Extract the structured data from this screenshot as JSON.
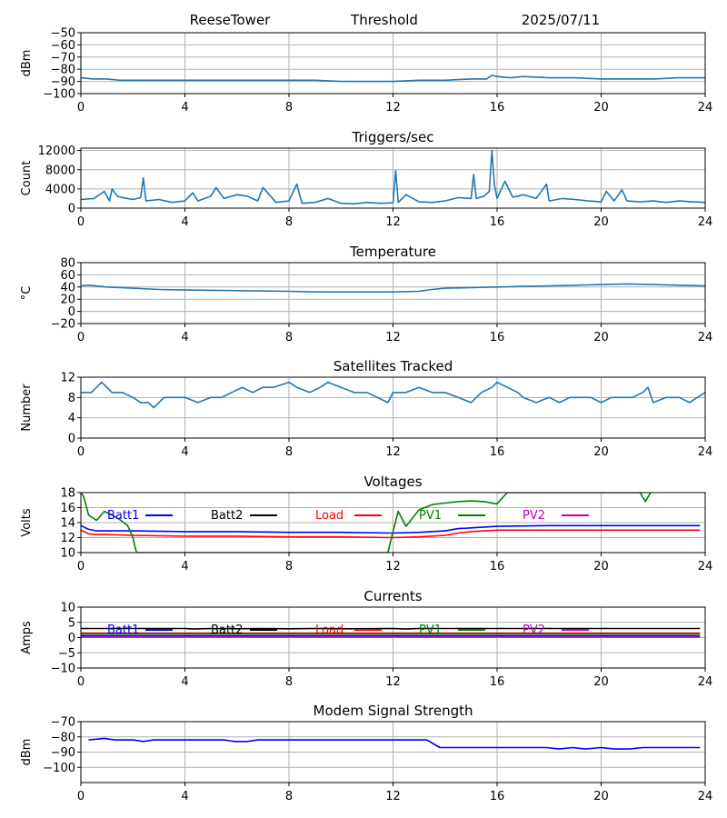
{
  "header": {
    "site": "ReeseTower",
    "mode": "Threshold",
    "date": "2025/07/11"
  },
  "chart_data": [
    {
      "type": "line",
      "title": "",
      "ylabel": "dBm",
      "xlabel": "",
      "xlim": [
        0,
        24
      ],
      "ylim": [
        -100,
        -50
      ],
      "xticks": [
        "0",
        "4",
        "8",
        "12",
        "16",
        "20",
        "24"
      ],
      "yticks": [
        "−100",
        "−90",
        "−80",
        "−70",
        "−60",
        "−50"
      ],
      "grid": true,
      "series": [
        {
          "color": "#1f77b4",
          "x": [
            0,
            0.5,
            1,
            1.5,
            2,
            3,
            4,
            6,
            8,
            9,
            10,
            11,
            12,
            13,
            14,
            15,
            15.6,
            15.8,
            16,
            16.5,
            17,
            18,
            19,
            20,
            21,
            22,
            23,
            24
          ],
          "y": [
            -87,
            -88,
            -88,
            -89,
            -89,
            -89,
            -89,
            -89,
            -89,
            -89,
            -90,
            -90,
            -90,
            -89,
            -89,
            -88,
            -88,
            -85,
            -86,
            -87,
            -86,
            -87,
            -87,
            -88,
            -88,
            -88,
            -87,
            -87
          ]
        }
      ]
    },
    {
      "type": "line",
      "title": "Triggers/sec",
      "ylabel": "Count",
      "xlabel": "",
      "xlim": [
        0,
        24
      ],
      "ylim": [
        0,
        12500
      ],
      "xticks": [
        "0",
        "4",
        "8",
        "12",
        "16",
        "20",
        "24"
      ],
      "yticks": [
        "0",
        "4000",
        "8000",
        "12000"
      ],
      "grid": true,
      "series": [
        {
          "color": "#1f77b4",
          "x": [
            0,
            0.5,
            0.9,
            1.1,
            1.2,
            1.4,
            1.6,
            1.8,
            2,
            2.3,
            2.4,
            2.5,
            3,
            3.5,
            4,
            4.3,
            4.5,
            5,
            5.2,
            5.5,
            6,
            6.4,
            6.8,
            7,
            7.5,
            8,
            8.3,
            8.5,
            9,
            9.5,
            10,
            10.5,
            11,
            11.5,
            12,
            12.1,
            12.2,
            12.5,
            13,
            13.5,
            14,
            14.5,
            15,
            15.1,
            15.2,
            15.5,
            15.7,
            15.8,
            15.9,
            16,
            16.3,
            16.6,
            16.8,
            17,
            17.5,
            17.9,
            18,
            18.5,
            19,
            19.5,
            20,
            20.2,
            20.5,
            20.8,
            21,
            21.5,
            22,
            22.5,
            23,
            23.5,
            24
          ],
          "y": [
            1800,
            2000,
            3500,
            1500,
            4000,
            2500,
            2200,
            2000,
            1800,
            2200,
            6300,
            1500,
            1800,
            1200,
            1500,
            3200,
            1500,
            2500,
            4300,
            2000,
            2800,
            2500,
            1500,
            4300,
            1200,
            1500,
            5000,
            1000,
            1200,
            2000,
            1000,
            900,
            1200,
            1000,
            1100,
            7800,
            1200,
            2800,
            1300,
            1200,
            1500,
            2200,
            2000,
            7000,
            2000,
            2500,
            3500,
            12000,
            4800,
            2000,
            5600,
            2300,
            2500,
            2800,
            2000,
            5000,
            1500,
            2000,
            1800,
            1500,
            1300,
            3500,
            1500,
            3800,
            1500,
            1300,
            1500,
            1200,
            1500,
            1300,
            1200
          ]
        }
      ]
    },
    {
      "type": "line",
      "title": "Temperature",
      "ylabel": "°C",
      "xlabel": "",
      "xlim": [
        0,
        24
      ],
      "ylim": [
        -20,
        80
      ],
      "xticks": [
        "0",
        "4",
        "8",
        "12",
        "16",
        "20",
        "24"
      ],
      "yticks": [
        "−20",
        "0",
        "20",
        "40",
        "60",
        "80"
      ],
      "grid": true,
      "series": [
        {
          "color": "#1f77b4",
          "x": [
            0,
            0.3,
            1,
            2,
            3,
            4,
            6,
            8,
            9,
            10,
            11,
            12,
            13,
            13.5,
            14,
            15,
            16,
            17,
            18,
            19,
            20,
            21,
            22,
            23,
            24
          ],
          "y": [
            42,
            43,
            40,
            38,
            36,
            35,
            34,
            33,
            32,
            32,
            32,
            32,
            33,
            36,
            38,
            39,
            40,
            41,
            42,
            43,
            44,
            45,
            44,
            43,
            42
          ]
        }
      ]
    },
    {
      "type": "line",
      "title": "Satellites Tracked",
      "ylabel": "Number",
      "xlabel": "",
      "xlim": [
        0,
        24
      ],
      "ylim": [
        0,
        12
      ],
      "xticks": [
        "0",
        "4",
        "8",
        "12",
        "16",
        "20",
        "24"
      ],
      "yticks": [
        "0",
        "4",
        "8",
        "12"
      ],
      "grid": true,
      "series": [
        {
          "color": "#1f77b4",
          "x": [
            0,
            0.4,
            0.6,
            0.8,
            1,
            1.2,
            1.6,
            2,
            2.3,
            2.6,
            2.8,
            3.0,
            3.2,
            3.5,
            4.0,
            4.5,
            5,
            5.4,
            5.8,
            6.2,
            6.6,
            7,
            7.4,
            8,
            8.3,
            8.8,
            9.2,
            9.5,
            10,
            10.5,
            11,
            11.4,
            11.8,
            12,
            12.5,
            13,
            13.5,
            14,
            14.5,
            15,
            15.4,
            15.8,
            16,
            16.4,
            16.8,
            17,
            17.5,
            18,
            18.4,
            18.8,
            19.2,
            19.6,
            20,
            20.4,
            20.8,
            21.2,
            21.6,
            21.8,
            22,
            22.5,
            23,
            23.4,
            24
          ],
          "y": [
            9,
            9,
            10,
            11,
            10,
            9,
            9,
            8,
            7,
            7,
            6,
            7,
            8,
            8,
            8,
            7,
            8,
            8,
            9,
            10,
            9,
            10,
            10,
            11,
            10,
            9,
            10,
            11,
            10,
            9,
            9,
            8,
            7,
            9,
            9,
            10,
            9,
            9,
            8,
            7,
            9,
            10,
            11,
            10,
            9,
            8,
            7,
            8,
            7,
            8,
            8,
            8,
            7,
            8,
            8,
            8,
            9,
            10,
            7,
            8,
            8,
            7,
            9
          ]
        }
      ]
    },
    {
      "type": "line",
      "title": "Voltages",
      "ylabel": "Volts",
      "xlabel": "",
      "xlim": [
        0,
        24
      ],
      "ylim": [
        10,
        18
      ],
      "xticks": [
        "0",
        "4",
        "8",
        "12",
        "16",
        "20",
        "24"
      ],
      "yticks": [
        "10",
        "12",
        "14",
        "16",
        "18"
      ],
      "grid": true,
      "legend": "top, single row",
      "series": [
        {
          "name": "Batt1",
          "color": "#0000ff",
          "x": [
            0,
            0.3,
            0.6,
            1,
            2,
            4,
            6,
            8,
            10,
            12,
            13,
            14,
            14.5,
            15,
            16,
            18,
            20,
            22,
            23.8
          ],
          "y": [
            13.6,
            13.1,
            12.9,
            12.9,
            12.9,
            12.8,
            12.8,
            12.7,
            12.7,
            12.6,
            12.7,
            12.9,
            13.2,
            13.3,
            13.5,
            13.6,
            13.6,
            13.6,
            13.6
          ]
        },
        {
          "name": "Batt2",
          "color": "#000000",
          "x": [],
          "y": []
        },
        {
          "name": "Load",
          "color": "#ff0000",
          "x": [
            0,
            0.3,
            0.6,
            1,
            2,
            4,
            6,
            8,
            10,
            12,
            13,
            14,
            14.5,
            15,
            16,
            18,
            20,
            22,
            23.8
          ],
          "y": [
            13.0,
            12.5,
            12.4,
            12.4,
            12.3,
            12.2,
            12.2,
            12.1,
            12.1,
            12.0,
            12.1,
            12.3,
            12.6,
            12.8,
            13.0,
            13.0,
            13.0,
            13.0,
            13.0
          ]
        },
        {
          "name": "PV1",
          "color": "#008000",
          "x": [
            0,
            0.1,
            0.3,
            0.6,
            0.9,
            1.2,
            1.5,
            1.8,
            2.0,
            2.1,
            2.15,
            11.8,
            12.0,
            12.2,
            12.5,
            13.0,
            13.5,
            14.0,
            14.5,
            15.0,
            15.5,
            16.0,
            16.2,
            16.4,
            16.6,
            21.5,
            21.7,
            21.9
          ],
          "y": [
            18,
            17.5,
            15.0,
            14.3,
            15.5,
            15.0,
            14.4,
            13.6,
            12.0,
            10.5,
            10.0,
            10.0,
            12.8,
            15.5,
            13.5,
            15.7,
            16.4,
            16.6,
            16.8,
            16.9,
            16.8,
            16.5,
            17.3,
            18,
            18,
            18,
            16.8,
            18
          ]
        },
        {
          "name": "PV2",
          "color": "#bf00bf",
          "x": [],
          "y": []
        }
      ]
    },
    {
      "type": "line",
      "title": "Currents",
      "ylabel": "Amps",
      "xlabel": "",
      "xlim": [
        0,
        24
      ],
      "ylim": [
        -10,
        10
      ],
      "xticks": [
        "0",
        "4",
        "8",
        "12",
        "16",
        "20",
        "24"
      ],
      "yticks": [
        "−10",
        "−5",
        "0",
        "5",
        "10"
      ],
      "grid": true,
      "legend": "top, single row",
      "series": [
        {
          "name": "Batt1",
          "color": "#0000ff",
          "x": [
            0,
            23.8
          ],
          "y": [
            0.6,
            0.6
          ]
        },
        {
          "name": "Batt2",
          "color": "#000000",
          "x": [
            0,
            4,
            4.3,
            5,
            6,
            7,
            8,
            9,
            10,
            12,
            12.5,
            13,
            16,
            20,
            23.8
          ],
          "y": [
            3.0,
            3.0,
            2.8,
            3.0,
            2.9,
            3.0,
            2.9,
            3.0,
            2.9,
            3.0,
            2.8,
            3.0,
            3.0,
            3.0,
            3.0
          ]
        },
        {
          "name": "Load",
          "color": "#ff0000",
          "x": [
            0,
            23.8
          ],
          "y": [
            1.5,
            1.5
          ]
        },
        {
          "name": "PV1",
          "color": "#008000",
          "x": [
            0,
            23.8
          ],
          "y": [
            1.2,
            1.2
          ]
        },
        {
          "name": "PV2",
          "color": "#bf00bf",
          "x": [
            0,
            23.8
          ],
          "y": [
            0.2,
            0.2
          ]
        }
      ]
    },
    {
      "type": "line",
      "title": "Modem Signal Strength",
      "ylabel": "dBm",
      "xlabel": "",
      "xlim": [
        0,
        24
      ],
      "ylim": [
        -110,
        -70
      ],
      "xticks": [
        "0",
        "4",
        "8",
        "12",
        "16",
        "20",
        "24"
      ],
      "yticks": [
        "−100",
        "−90",
        "−80",
        "−70"
      ],
      "grid": true,
      "series": [
        {
          "color": "#0000ff",
          "x": [
            0.3,
            0.9,
            1.3,
            2,
            2.4,
            2.8,
            3.2,
            5.5,
            5.9,
            6.4,
            6.8,
            7.3,
            13.3,
            13.8,
            17.9,
            18.4,
            18.9,
            19.4,
            20.0,
            20.5,
            21.1,
            21.6,
            23.8
          ],
          "y": [
            -82,
            -81,
            -82,
            -82,
            -83,
            -82,
            -82,
            -82,
            -83,
            -83,
            -82,
            -82,
            -82,
            -87,
            -87,
            -88,
            -87,
            -88,
            -87,
            -88,
            -88,
            -87,
            -87
          ]
        }
      ]
    }
  ]
}
